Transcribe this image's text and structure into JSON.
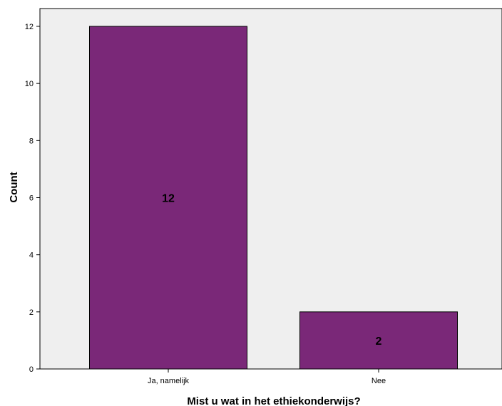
{
  "chart_data": {
    "type": "bar",
    "categories": [
      "Ja, namelijk",
      "Nee"
    ],
    "values": [
      12,
      2
    ],
    "data_labels": [
      "12",
      "2"
    ],
    "title": "",
    "xlabel": "Mist u wat in het ethiekonderwijs?",
    "ylabel": "Count",
    "ylim": [
      0,
      12
    ],
    "yticks": [
      "0",
      "2",
      "4",
      "6",
      "8",
      "10",
      "12"
    ],
    "grid": false,
    "legend": "none"
  },
  "colors": {
    "bar": "#7a2878",
    "plot_background": "#efefef",
    "axis": "#000000"
  }
}
